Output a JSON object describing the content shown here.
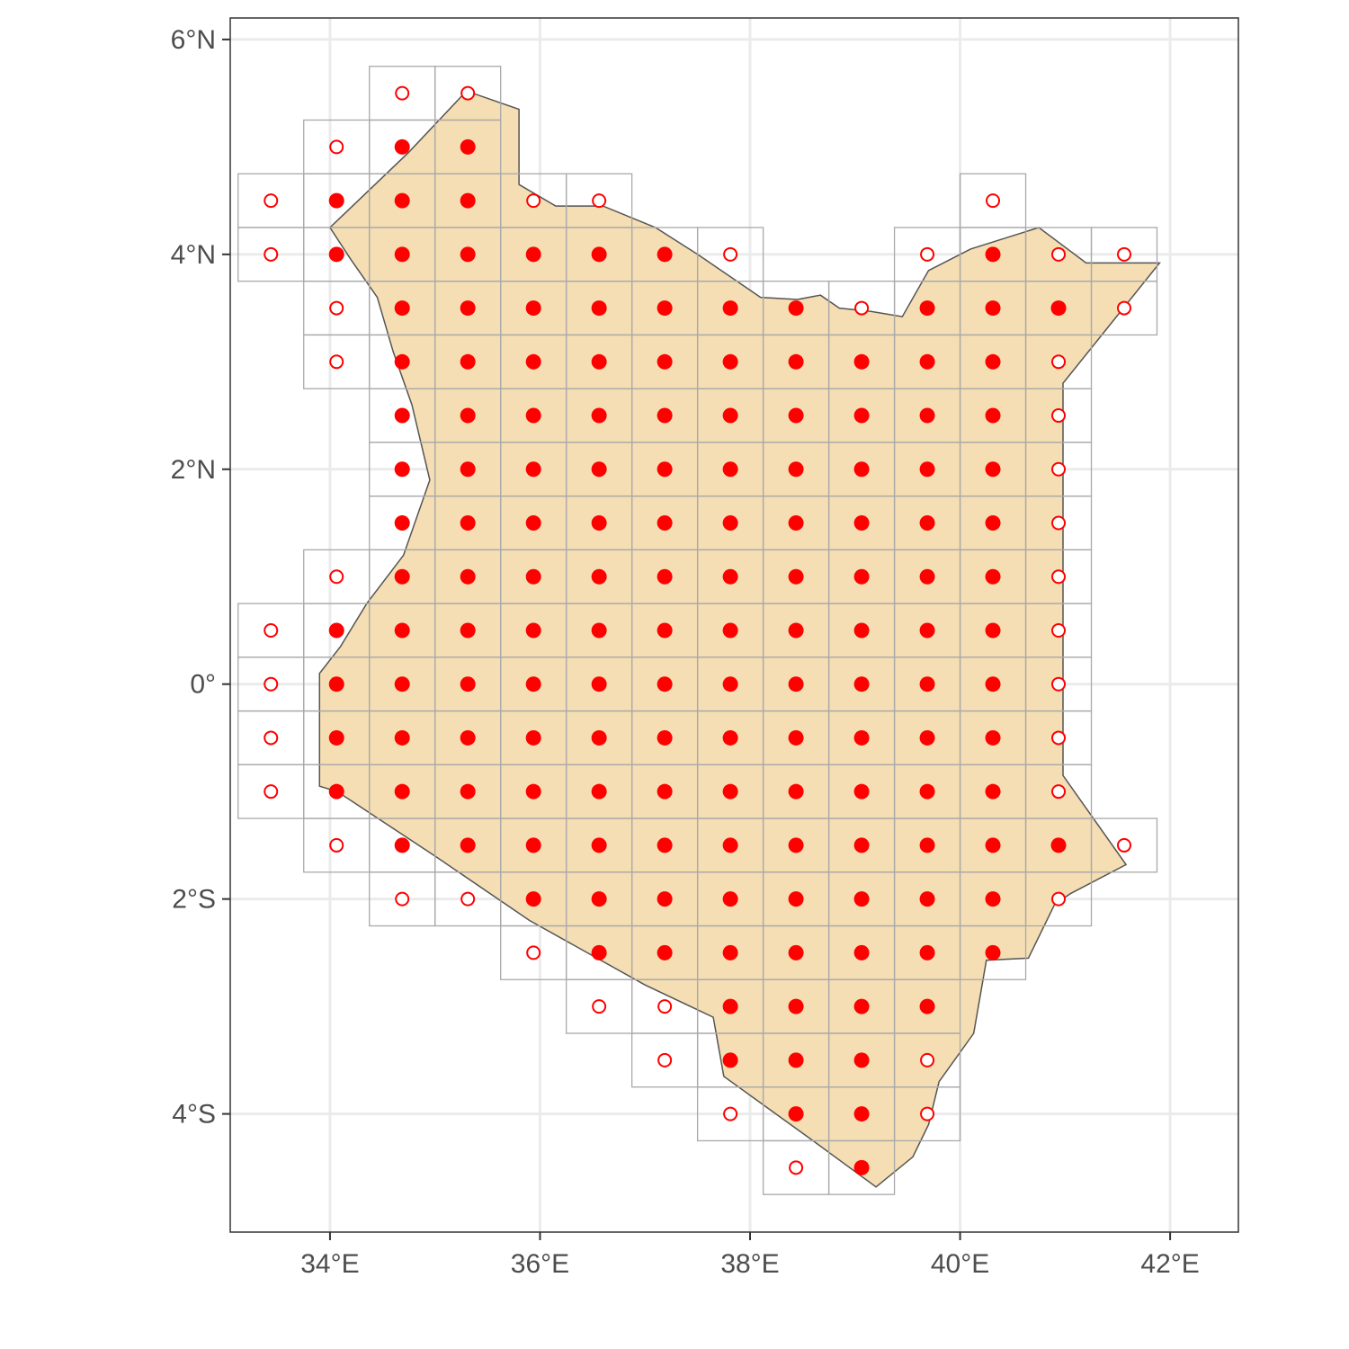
{
  "chart_data": {
    "type": "map",
    "region": "Kenya",
    "x_axis": {
      "range": [
        33.05,
        42.65
      ],
      "ticks": [
        34,
        36,
        38,
        40,
        42
      ],
      "tick_labels": [
        "34°E",
        "36°E",
        "38°E",
        "40°E",
        "42°E"
      ]
    },
    "y_axis": {
      "range": [
        -5.1,
        6.2
      ],
      "ticks": [
        6,
        4,
        2,
        0,
        -2,
        -4
      ],
      "tick_labels": [
        "6°N",
        "4°N",
        "2°N",
        "0°",
        "2°S",
        "4°S"
      ]
    },
    "grid": true,
    "grid_cells": {
      "x_origin": 33.4375,
      "x_step": 0.625,
      "y_origin": -4.75,
      "y_step": 0.5,
      "rows": [
        {
          "y": 5.5,
          "cols": [
            [
              2,
              2,
              "o"
            ],
            [
              3,
              3,
              "o"
            ]
          ]
        },
        {
          "y": 5.0,
          "cols": [
            [
              1,
              1,
              "o"
            ],
            [
              2,
              3,
              "f"
            ]
          ]
        },
        {
          "y": 4.5,
          "cols": [
            [
              0,
              0,
              "o"
            ],
            [
              1,
              3,
              "f"
            ],
            [
              4,
              5,
              "o"
            ],
            [
              11,
              11,
              "o"
            ]
          ]
        },
        {
          "y": 4.0,
          "cols": [
            [
              0,
              0,
              "o"
            ],
            [
              1,
              6,
              "f"
            ],
            [
              7,
              7,
              "o"
            ],
            [
              10,
              10,
              "o"
            ],
            [
              11,
              11,
              "f"
            ],
            [
              12,
              13,
              "o"
            ]
          ]
        },
        {
          "y": 3.5,
          "cols": [
            [
              1,
              1,
              "o"
            ],
            [
              2,
              8,
              "f"
            ],
            [
              9,
              9,
              "o"
            ],
            [
              10,
              12,
              "f"
            ],
            [
              13,
              13,
              "o"
            ]
          ]
        },
        {
          "y": 3.0,
          "cols": [
            [
              1,
              1,
              "o"
            ],
            [
              2,
              11,
              "f"
            ],
            [
              12,
              12,
              "o"
            ]
          ]
        },
        {
          "y": 2.5,
          "cols": [
            [
              2,
              11,
              "f"
            ],
            [
              12,
              12,
              "o"
            ]
          ]
        },
        {
          "y": 2.0,
          "cols": [
            [
              2,
              11,
              "f"
            ],
            [
              12,
              12,
              "o"
            ]
          ]
        },
        {
          "y": 1.5,
          "cols": [
            [
              2,
              11,
              "f"
            ],
            [
              12,
              12,
              "o"
            ]
          ]
        },
        {
          "y": 1.0,
          "cols": [
            [
              1,
              1,
              "o"
            ],
            [
              2,
              11,
              "f"
            ],
            [
              12,
              12,
              "o"
            ]
          ]
        },
        {
          "y": 0.5,
          "cols": [
            [
              0,
              0,
              "o"
            ],
            [
              1,
              11,
              "f"
            ],
            [
              12,
              12,
              "o"
            ]
          ]
        },
        {
          "y": 0.0,
          "cols": [
            [
              0,
              0,
              "o"
            ],
            [
              1,
              11,
              "f"
            ],
            [
              12,
              12,
              "o"
            ]
          ]
        },
        {
          "y": -0.5,
          "cols": [
            [
              0,
              0,
              "o"
            ],
            [
              1,
              11,
              "f"
            ],
            [
              12,
              12,
              "o"
            ]
          ]
        },
        {
          "y": -1.0,
          "cols": [
            [
              0,
              0,
              "o"
            ],
            [
              1,
              11,
              "f"
            ],
            [
              12,
              12,
              "o"
            ]
          ]
        },
        {
          "y": -1.5,
          "cols": [
            [
              1,
              1,
              "o"
            ],
            [
              2,
              12,
              "f"
            ],
            [
              13,
              13,
              "o"
            ]
          ]
        },
        {
          "y": -2.0,
          "cols": [
            [
              2,
              3,
              "o"
            ],
            [
              4,
              11,
              "f"
            ],
            [
              12,
              12,
              "o"
            ]
          ]
        },
        {
          "y": -2.5,
          "cols": [
            [
              4,
              4,
              "o"
            ],
            [
              5,
              11,
              "f"
            ]
          ]
        },
        {
          "y": -3.0,
          "cols": [
            [
              5,
              6,
              "o"
            ],
            [
              7,
              10,
              "f"
            ]
          ]
        },
        {
          "y": -3.5,
          "cols": [
            [
              6,
              6,
              "o"
            ],
            [
              7,
              9,
              "f"
            ],
            [
              10,
              10,
              "o"
            ]
          ]
        },
        {
          "y": -4.0,
          "cols": [
            [
              7,
              7,
              "o"
            ],
            [
              8,
              9,
              "f"
            ],
            [
              10,
              10,
              "o"
            ]
          ]
        },
        {
          "y": -4.5,
          "cols": [
            [
              8,
              8,
              "o"
            ],
            [
              9,
              9,
              "f"
            ]
          ]
        }
      ]
    },
    "boundary": [
      [
        34.0,
        4.25
      ],
      [
        34.75,
        4.95
      ],
      [
        35.3,
        5.52
      ],
      [
        35.8,
        5.35
      ],
      [
        35.8,
        4.65
      ],
      [
        36.15,
        4.45
      ],
      [
        36.6,
        4.45
      ],
      [
        37.1,
        4.25
      ],
      [
        37.5,
        4.0
      ],
      [
        38.1,
        3.6
      ],
      [
        38.45,
        3.58
      ],
      [
        38.67,
        3.62
      ],
      [
        38.85,
        3.5
      ],
      [
        39.15,
        3.47
      ],
      [
        39.45,
        3.42
      ],
      [
        39.7,
        3.85
      ],
      [
        40.1,
        4.05
      ],
      [
        40.75,
        4.25
      ],
      [
        41.2,
        3.92
      ],
      [
        41.9,
        3.92
      ],
      [
        41.35,
        3.25
      ],
      [
        40.98,
        2.8
      ],
      [
        40.98,
        -0.85
      ],
      [
        41.58,
        -1.68
      ],
      [
        41.05,
        -1.95
      ],
      [
        40.9,
        -2.05
      ],
      [
        40.65,
        -2.55
      ],
      [
        40.25,
        -2.57
      ],
      [
        40.13,
        -3.25
      ],
      [
        39.8,
        -3.7
      ],
      [
        39.7,
        -4.1
      ],
      [
        39.55,
        -4.4
      ],
      [
        39.2,
        -4.68
      ],
      [
        38.6,
        -4.25
      ],
      [
        37.75,
        -3.65
      ],
      [
        37.65,
        -3.1
      ],
      [
        37.0,
        -2.8
      ],
      [
        35.9,
        -2.2
      ],
      [
        35.0,
        -1.6
      ],
      [
        34.07,
        -1.0
      ],
      [
        33.9,
        -0.95
      ],
      [
        33.9,
        0.1
      ],
      [
        34.1,
        0.35
      ],
      [
        34.35,
        0.75
      ],
      [
        34.7,
        1.2
      ],
      [
        34.95,
        1.9
      ],
      [
        34.78,
        2.6
      ],
      [
        34.6,
        3.1
      ],
      [
        34.45,
        3.6
      ],
      [
        34.2,
        3.95
      ]
    ],
    "colors": {
      "land_fill": "#f5deb3",
      "land_border": "#555555",
      "cell_border": "#a9a9a9",
      "point": "#ff0000",
      "gridline": "#ebebeb",
      "panel_border": "#333333"
    },
    "legend": "none"
  }
}
